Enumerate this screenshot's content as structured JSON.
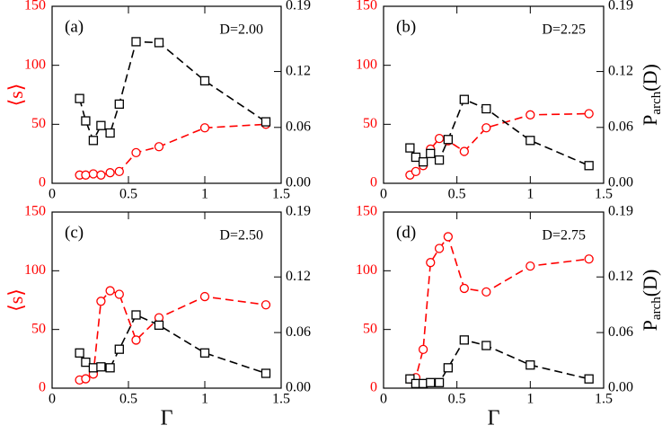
{
  "chart_data": [
    {
      "type": "line",
      "annotation": "(a)",
      "label": "D=2.00",
      "ylabel": "⟨s⟩",
      "x": [
        0.18,
        0.22,
        0.27,
        0.32,
        0.38,
        0.44,
        0.55,
        0.7,
        1.0,
        1.4
      ],
      "xlim": [
        0,
        1.5
      ],
      "xticks": [
        0,
        0.5,
        1,
        1.5
      ],
      "ylim": [
        0,
        150
      ],
      "yticks": [
        0,
        50,
        100,
        150
      ],
      "y2lim": [
        0,
        0.19
      ],
      "y2ticks": [
        {
          "value": 0,
          "label": "0.00"
        },
        0.06,
        0.12,
        0.19
      ],
      "series": [
        {
          "color": "#ff0000",
          "marker": "circle",
          "values": [
            7,
            7,
            8,
            7,
            9,
            10,
            26,
            31,
            47,
            50
          ]
        },
        {
          "color": "#000000",
          "marker": "square",
          "axis": "y2",
          "values": [
            0.091,
            0.067,
            0.046,
            0.062,
            0.054,
            0.085,
            0.152,
            0.151,
            0.11,
            0.066
          ]
        }
      ]
    },
    {
      "type": "line",
      "annotation": "(b)",
      "label": "D=2.25",
      "y2label": {
        "base": "P",
        "sub": "arch",
        "tail": "(D)"
      },
      "x": [
        0.18,
        0.22,
        0.27,
        0.32,
        0.38,
        0.44,
        0.55,
        0.7,
        1.0,
        1.4
      ],
      "xlim": [
        0,
        1.5
      ],
      "xticks": [
        0,
        0.5,
        1,
        1.5
      ],
      "ylim": [
        0,
        150
      ],
      "yticks": [
        0,
        50,
        100,
        150
      ],
      "y2lim": [
        0,
        0.19
      ],
      "y2ticks": [
        {
          "value": 0,
          "label": "0.00"
        },
        0.06,
        0.12,
        0.19
      ],
      "series": [
        {
          "color": "#ff0000",
          "marker": "circle",
          "values": [
            7,
            10,
            15,
            29,
            38,
            36,
            27,
            47,
            58,
            59
          ]
        },
        {
          "color": "#000000",
          "marker": "square",
          "axis": "y2",
          "values": [
            0.038,
            0.028,
            0.023,
            0.032,
            0.025,
            0.047,
            0.09,
            0.08,
            0.046,
            0.019
          ]
        }
      ]
    },
    {
      "type": "line",
      "annotation": "(c)",
      "label": "D=2.50",
      "ylabel": "⟨s⟩",
      "xlabel": "Γ",
      "x": [
        0.18,
        0.22,
        0.27,
        0.32,
        0.38,
        0.44,
        0.55,
        0.7,
        1.0,
        1.4
      ],
      "xlim": [
        0,
        1.5
      ],
      "xticks": [
        0,
        0.5,
        1,
        1.5
      ],
      "ylim": [
        0,
        150
      ],
      "yticks": [
        0,
        50,
        100,
        150
      ],
      "y2lim": [
        0,
        0.19
      ],
      "y2ticks": [
        {
          "value": 0,
          "label": "0.00"
        },
        0.06,
        0.12,
        0.19
      ],
      "series": [
        {
          "color": "#ff0000",
          "marker": "circle",
          "values": [
            7,
            8,
            12,
            74,
            83,
            80,
            41,
            60,
            78,
            71
          ]
        },
        {
          "color": "#000000",
          "marker": "square",
          "axis": "y2",
          "values": [
            0.038,
            0.028,
            0.022,
            0.023,
            0.022,
            0.042,
            0.079,
            0.068,
            0.038,
            0.016
          ]
        }
      ]
    },
    {
      "type": "line",
      "annotation": "(d)",
      "label": "D=2.75",
      "xlabel": "Γ",
      "y2label": {
        "base": "P",
        "sub": "arch",
        "tail": "(D)"
      },
      "x": [
        0.18,
        0.22,
        0.27,
        0.32,
        0.38,
        0.44,
        0.55,
        0.7,
        1.0,
        1.4
      ],
      "xlim": [
        0,
        1.5
      ],
      "xticks": [
        0,
        0.5,
        1,
        1.5
      ],
      "ylim": [
        0,
        150
      ],
      "yticks": [
        0,
        50,
        100,
        150
      ],
      "y2lim": [
        0,
        0.19
      ],
      "y2ticks": [
        {
          "value": 0,
          "label": "0.00"
        },
        0.06,
        0.12,
        0.19
      ],
      "series": [
        {
          "color": "#ff0000",
          "marker": "circle",
          "values": [
            8,
            9,
            33,
            107,
            119,
            129,
            85,
            82,
            104,
            110
          ]
        },
        {
          "color": "#000000",
          "marker": "square",
          "axis": "y2",
          "values": [
            0.01,
            0.005,
            0.005,
            0.006,
            0.006,
            0.022,
            0.052,
            0.046,
            0.025,
            0.01
          ]
        }
      ]
    }
  ]
}
